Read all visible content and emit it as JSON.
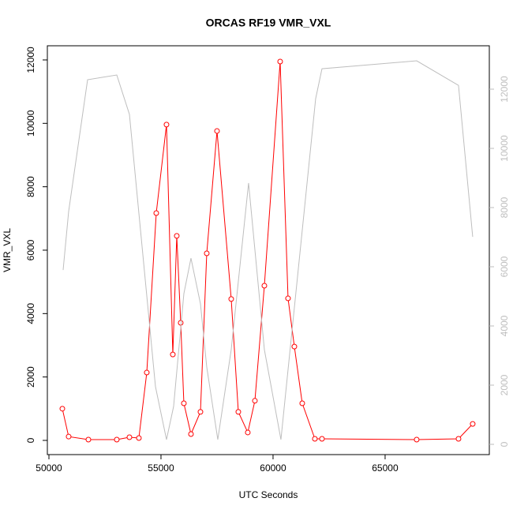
{
  "chart_data": {
    "type": "line",
    "title": "ORCAS RF19 VMR_VXL",
    "x_label": "UTC Seconds",
    "y_label": "VMR_VXL",
    "xlim": [
      49930,
      69650
    ],
    "xticks": [
      50000,
      55000,
      60000,
      65000
    ],
    "ylim": [
      -448,
      12447
    ],
    "yticks": [
      0,
      2000,
      4000,
      6000,
      8000,
      10000,
      12000
    ],
    "y2lim": [
      -347,
      13467
    ],
    "y2ticks": [
      0,
      2000,
      4000,
      6000,
      8000,
      10000,
      12000
    ],
    "y2color": "#bebebe",
    "series": [
      {
        "color": "#ff0000",
        "markers": true,
        "x": [
          50599,
          50880,
          51761,
          53028,
          53592,
          54014,
          54366,
          54789,
          55246,
          55528,
          55704,
          55880,
          56021,
          56338,
          56761,
          57042,
          57500,
          58134,
          58451,
          58873,
          59190,
          59613,
          60317,
          60669,
          60951,
          61303,
          61866,
          62183,
          66408,
          68275,
          68908
        ],
        "values": [
          1000,
          120,
          25,
          25,
          100,
          75,
          2140,
          7170,
          9960,
          2710,
          6450,
          3710,
          1170,
          200,
          900,
          5900,
          9760,
          4460,
          900,
          250,
          1250,
          4880,
          11950,
          4480,
          2960,
          1170,
          50,
          50,
          25,
          50,
          520
        ]
      },
      {
        "color": "#bebebe",
        "markers": false,
        "axis": "y2",
        "x": [
          50634,
          50880,
          51725,
          53028,
          53592,
          54754,
          55246,
          55563,
          56021,
          56338,
          56761,
          57042,
          57535,
          58134,
          58908,
          59613,
          60352,
          61901,
          62183,
          66408,
          68275,
          68908
        ],
        "values": [
          5890,
          7870,
          12320,
          12480,
          11150,
          1950,
          160,
          1280,
          5090,
          6290,
          4750,
          2610,
          160,
          3200,
          8830,
          3200,
          160,
          11680,
          12690,
          12960,
          12130,
          7010
        ]
      }
    ]
  }
}
